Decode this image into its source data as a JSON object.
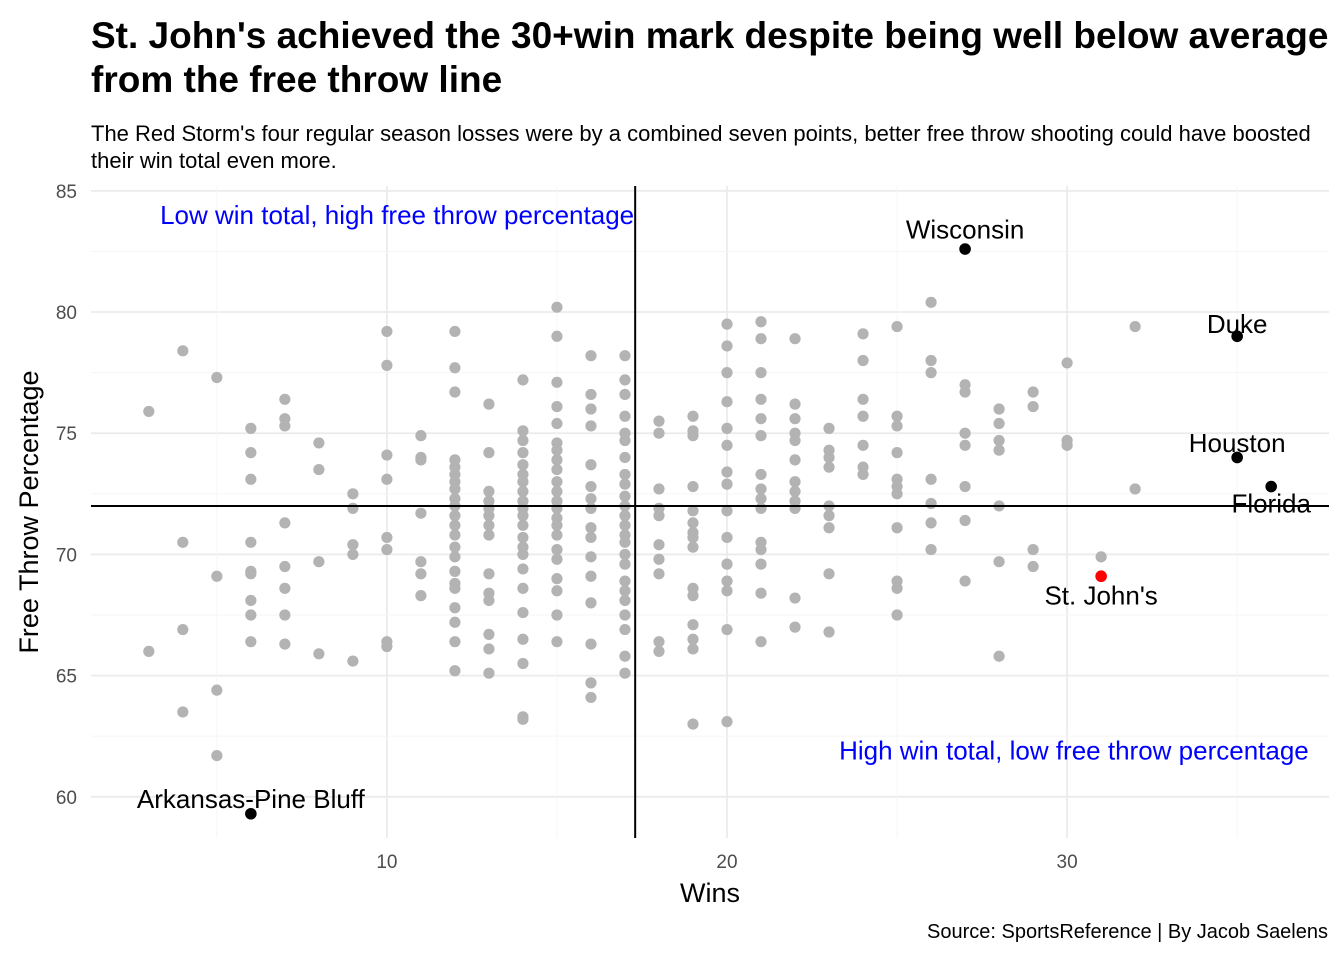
{
  "chart_data": {
    "type": "scatter",
    "title": "St. John's achieved the 30+win mark despite being well below average from the free throw line",
    "subtitle": "The Red Storm's four regular season losses were by a combined seven points, better free throw shooting could have boosted their win total even more.",
    "caption": "Source: SportsReference | By Jacob Saelens",
    "xlabel": "Wins",
    "ylabel": "Free Throw Percentage",
    "xlim": [
      1.3,
      37.7
    ],
    "ylim": [
      58.3,
      85.2
    ],
    "x_ticks": [
      10,
      20,
      30
    ],
    "y_ticks": [
      60,
      65,
      70,
      75,
      80,
      85
    ],
    "grid": true,
    "reference_lines": {
      "mean_wins": 17.3,
      "mean_ft_pct": 72.0
    },
    "colors": {
      "others": "#b3b3b3",
      "highlight": "#000000",
      "st_johns": "#ff0000",
      "quadrant_text": "#0000ff",
      "grid": "#ebebeb",
      "ref_line": "#000000"
    },
    "quadrant_labels": [
      {
        "text": "Low win total, high free throw percentage",
        "x": 10.3,
        "y": 84.0
      },
      {
        "text": "High win total, low free throw percentage",
        "x": 30.2,
        "y": 61.9
      }
    ],
    "highlighted": [
      {
        "name": "Wisconsin",
        "x": 27,
        "y": 82.6,
        "color": "#000000",
        "label_y": 83.4
      },
      {
        "name": "Duke",
        "x": 35,
        "y": 79.0,
        "color": "#000000",
        "label_y": 79.5
      },
      {
        "name": "Houston",
        "x": 35,
        "y": 74.0,
        "color": "#000000",
        "label_y": 74.6
      },
      {
        "name": "Florida",
        "x": 36,
        "y": 72.8,
        "color": "#000000",
        "label_y": 72.1
      },
      {
        "name": "St. John's",
        "x": 31,
        "y": 69.1,
        "color": "#ff0000",
        "label_y": 68.3
      },
      {
        "name": "Arkansas-Pine Bluff",
        "x": 6,
        "y": 59.3,
        "color": "#000000",
        "label_y": 59.9
      }
    ],
    "points": [
      [
        3,
        75.9
      ],
      [
        3,
        66.0
      ],
      [
        4,
        78.4
      ],
      [
        4,
        70.5
      ],
      [
        4,
        66.9
      ],
      [
        4,
        63.5
      ],
      [
        5,
        77.3
      ],
      [
        5,
        69.1
      ],
      [
        5,
        64.4
      ],
      [
        5,
        61.7
      ],
      [
        6,
        75.2
      ],
      [
        6,
        74.2
      ],
      [
        6,
        73.1
      ],
      [
        6,
        70.5
      ],
      [
        6,
        69.3
      ],
      [
        6,
        69.2
      ],
      [
        6,
        68.1
      ],
      [
        6,
        67.5
      ],
      [
        6,
        66.4
      ],
      [
        7,
        76.4
      ],
      [
        7,
        75.6
      ],
      [
        7,
        75.3
      ],
      [
        7,
        71.3
      ],
      [
        7,
        69.5
      ],
      [
        7,
        68.6
      ],
      [
        7,
        67.5
      ],
      [
        7,
        66.3
      ],
      [
        8,
        74.6
      ],
      [
        8,
        73.5
      ],
      [
        8,
        69.7
      ],
      [
        8,
        65.9
      ],
      [
        9,
        72.5
      ],
      [
        9,
        71.9
      ],
      [
        9,
        70.4
      ],
      [
        9,
        70.0
      ],
      [
        9,
        65.6
      ],
      [
        10,
        79.2
      ],
      [
        10,
        77.8
      ],
      [
        10,
        74.1
      ],
      [
        10,
        73.1
      ],
      [
        10,
        70.7
      ],
      [
        10,
        70.2
      ],
      [
        10,
        66.4
      ],
      [
        10,
        66.2
      ],
      [
        11,
        74.9
      ],
      [
        11,
        74.0
      ],
      [
        11,
        73.9
      ],
      [
        11,
        71.7
      ],
      [
        11,
        69.7
      ],
      [
        11,
        69.2
      ],
      [
        11,
        68.3
      ],
      [
        12,
        79.2
      ],
      [
        12,
        77.7
      ],
      [
        12,
        76.7
      ],
      [
        12,
        73.9
      ],
      [
        12,
        73.6
      ],
      [
        12,
        73.3
      ],
      [
        12,
        73.0
      ],
      [
        12,
        72.7
      ],
      [
        12,
        72.3
      ],
      [
        12,
        72.0
      ],
      [
        12,
        71.6
      ],
      [
        12,
        71.2
      ],
      [
        12,
        70.8
      ],
      [
        12,
        70.3
      ],
      [
        12,
        69.9
      ],
      [
        12,
        69.3
      ],
      [
        12,
        68.8
      ],
      [
        12,
        68.6
      ],
      [
        12,
        67.8
      ],
      [
        12,
        67.2
      ],
      [
        12,
        66.4
      ],
      [
        12,
        65.2
      ],
      [
        13,
        76.2
      ],
      [
        13,
        74.2
      ],
      [
        13,
        72.6
      ],
      [
        13,
        72.2
      ],
      [
        13,
        71.9
      ],
      [
        13,
        71.6
      ],
      [
        13,
        71.2
      ],
      [
        13,
        70.8
      ],
      [
        13,
        69.2
      ],
      [
        13,
        68.4
      ],
      [
        13,
        68.1
      ],
      [
        13,
        66.7
      ],
      [
        13,
        66.1
      ],
      [
        13,
        65.1
      ],
      [
        14,
        77.2
      ],
      [
        14,
        75.1
      ],
      [
        14,
        74.7
      ],
      [
        14,
        74.2
      ],
      [
        14,
        73.7
      ],
      [
        14,
        73.3
      ],
      [
        14,
        73.0
      ],
      [
        14,
        72.6
      ],
      [
        14,
        72.2
      ],
      [
        14,
        71.9
      ],
      [
        14,
        71.6
      ],
      [
        14,
        71.2
      ],
      [
        14,
        70.7
      ],
      [
        14,
        70.3
      ],
      [
        14,
        70.0
      ],
      [
        14,
        69.4
      ],
      [
        14,
        68.6
      ],
      [
        14,
        67.6
      ],
      [
        14,
        66.5
      ],
      [
        14,
        65.5
      ],
      [
        14,
        63.3
      ],
      [
        14,
        63.2
      ],
      [
        15,
        80.2
      ],
      [
        15,
        79.0
      ],
      [
        15,
        77.1
      ],
      [
        15,
        76.1
      ],
      [
        15,
        75.4
      ],
      [
        15,
        74.6
      ],
      [
        15,
        74.3
      ],
      [
        15,
        73.9
      ],
      [
        15,
        73.5
      ],
      [
        15,
        73.0
      ],
      [
        15,
        72.6
      ],
      [
        15,
        72.2
      ],
      [
        15,
        71.9
      ],
      [
        15,
        71.5
      ],
      [
        15,
        71.2
      ],
      [
        15,
        70.8
      ],
      [
        15,
        70.2
      ],
      [
        15,
        69.8
      ],
      [
        15,
        69.0
      ],
      [
        15,
        68.5
      ],
      [
        15,
        67.5
      ],
      [
        15,
        66.4
      ],
      [
        16,
        78.2
      ],
      [
        16,
        76.6
      ],
      [
        16,
        76.0
      ],
      [
        16,
        75.3
      ],
      [
        16,
        73.7
      ],
      [
        16,
        72.8
      ],
      [
        16,
        72.3
      ],
      [
        16,
        71.9
      ],
      [
        16,
        71.1
      ],
      [
        16,
        70.7
      ],
      [
        16,
        69.9
      ],
      [
        16,
        69.1
      ],
      [
        16,
        68.0
      ],
      [
        16,
        66.3
      ],
      [
        16,
        64.7
      ],
      [
        16,
        64.1
      ],
      [
        17,
        78.2
      ],
      [
        17,
        77.2
      ],
      [
        17,
        76.6
      ],
      [
        17,
        75.7
      ],
      [
        17,
        75.0
      ],
      [
        17,
        74.7
      ],
      [
        17,
        74.0
      ],
      [
        17,
        73.3
      ],
      [
        17,
        72.9
      ],
      [
        17,
        72.4
      ],
      [
        17,
        72.0
      ],
      [
        17,
        71.6
      ],
      [
        17,
        71.2
      ],
      [
        17,
        70.8
      ],
      [
        17,
        70.5
      ],
      [
        17,
        70.0
      ],
      [
        17,
        69.6
      ],
      [
        17,
        68.9
      ],
      [
        17,
        68.5
      ],
      [
        17,
        68.1
      ],
      [
        17,
        67.5
      ],
      [
        17,
        66.9
      ],
      [
        17,
        65.8
      ],
      [
        17,
        65.1
      ],
      [
        18,
        75.5
      ],
      [
        18,
        75.0
      ],
      [
        18,
        72.7
      ],
      [
        18,
        71.9
      ],
      [
        18,
        71.6
      ],
      [
        18,
        70.4
      ],
      [
        18,
        69.8
      ],
      [
        18,
        69.2
      ],
      [
        18,
        66.4
      ],
      [
        18,
        66.0
      ],
      [
        19,
        75.7
      ],
      [
        19,
        75.1
      ],
      [
        19,
        74.9
      ],
      [
        19,
        72.8
      ],
      [
        19,
        71.8
      ],
      [
        19,
        71.3
      ],
      [
        19,
        70.9
      ],
      [
        19,
        70.7
      ],
      [
        19,
        70.3
      ],
      [
        19,
        68.6
      ],
      [
        19,
        68.3
      ],
      [
        19,
        67.1
      ],
      [
        19,
        66.5
      ],
      [
        19,
        66.1
      ],
      [
        19,
        63.0
      ],
      [
        20,
        79.5
      ],
      [
        20,
        78.6
      ],
      [
        20,
        77.5
      ],
      [
        20,
        76.3
      ],
      [
        20,
        75.2
      ],
      [
        20,
        74.5
      ],
      [
        20,
        73.4
      ],
      [
        20,
        72.9
      ],
      [
        20,
        71.8
      ],
      [
        20,
        70.7
      ],
      [
        20,
        69.6
      ],
      [
        20,
        68.9
      ],
      [
        20,
        68.5
      ],
      [
        20,
        66.9
      ],
      [
        20,
        63.1
      ],
      [
        21,
        79.6
      ],
      [
        21,
        78.9
      ],
      [
        21,
        77.5
      ],
      [
        21,
        76.4
      ],
      [
        21,
        75.6
      ],
      [
        21,
        74.9
      ],
      [
        21,
        73.3
      ],
      [
        21,
        72.7
      ],
      [
        21,
        72.3
      ],
      [
        21,
        71.9
      ],
      [
        21,
        70.5
      ],
      [
        21,
        70.2
      ],
      [
        21,
        69.6
      ],
      [
        21,
        68.4
      ],
      [
        21,
        66.4
      ],
      [
        22,
        78.9
      ],
      [
        22,
        76.2
      ],
      [
        22,
        75.6
      ],
      [
        22,
        75.0
      ],
      [
        22,
        74.7
      ],
      [
        22,
        73.9
      ],
      [
        22,
        73.0
      ],
      [
        22,
        72.6
      ],
      [
        22,
        72.2
      ],
      [
        22,
        71.9
      ],
      [
        22,
        68.2
      ],
      [
        22,
        67.0
      ],
      [
        23,
        75.2
      ],
      [
        23,
        74.3
      ],
      [
        23,
        74.0
      ],
      [
        23,
        73.6
      ],
      [
        23,
        72.0
      ],
      [
        23,
        71.6
      ],
      [
        23,
        71.1
      ],
      [
        23,
        69.2
      ],
      [
        23,
        66.8
      ],
      [
        24,
        79.1
      ],
      [
        24,
        78.0
      ],
      [
        24,
        76.4
      ],
      [
        24,
        75.7
      ],
      [
        24,
        74.5
      ],
      [
        24,
        73.6
      ],
      [
        24,
        73.3
      ],
      [
        25,
        79.4
      ],
      [
        25,
        75.7
      ],
      [
        25,
        75.3
      ],
      [
        25,
        74.2
      ],
      [
        25,
        73.1
      ],
      [
        25,
        72.8
      ],
      [
        25,
        72.5
      ],
      [
        25,
        71.1
      ],
      [
        25,
        68.9
      ],
      [
        25,
        68.6
      ],
      [
        25,
        67.5
      ],
      [
        26,
        80.4
      ],
      [
        26,
        78.0
      ],
      [
        26,
        77.5
      ],
      [
        26,
        73.1
      ],
      [
        26,
        72.1
      ],
      [
        26,
        71.3
      ],
      [
        26,
        70.2
      ],
      [
        27,
        77.0
      ],
      [
        27,
        76.7
      ],
      [
        27,
        75.0
      ],
      [
        27,
        74.5
      ],
      [
        27,
        72.8
      ],
      [
        27,
        71.4
      ],
      [
        27,
        68.9
      ],
      [
        28,
        76.0
      ],
      [
        28,
        75.4
      ],
      [
        28,
        74.7
      ],
      [
        28,
        74.3
      ],
      [
        28,
        72.0
      ],
      [
        28,
        69.7
      ],
      [
        28,
        65.8
      ],
      [
        29,
        76.7
      ],
      [
        29,
        76.1
      ],
      [
        29,
        70.2
      ],
      [
        29,
        69.5
      ],
      [
        30,
        77.9
      ],
      [
        30,
        74.7
      ],
      [
        30,
        74.5
      ],
      [
        31,
        69.9
      ],
      [
        32,
        79.4
      ],
      [
        32,
        72.7
      ]
    ]
  }
}
